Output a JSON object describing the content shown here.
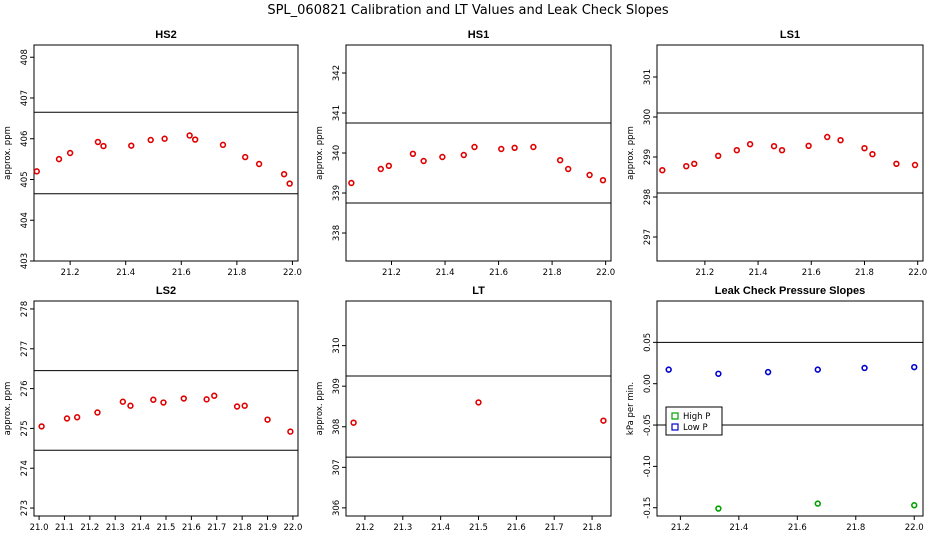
{
  "title": "SPL_060821  Calibration and LT Values and Leak Check Slopes",
  "colors": {
    "red": "#e00000",
    "green": "#00a000",
    "blue": "#0000d0",
    "line": "#000000"
  },
  "chart_data": [
    {
      "type": "scatter",
      "title": "HS2",
      "ylabel": "approx. ppm",
      "xlim": [
        21.07,
        22.02
      ],
      "ylim": [
        403.0,
        408.3
      ],
      "xticks": [
        "21.2",
        "21.4",
        "21.6",
        "21.8",
        "22.0"
      ],
      "yticks": [
        "403",
        "404",
        "405",
        "406",
        "407",
        "408"
      ],
      "hlines": [
        406.65,
        404.65
      ],
      "series": [
        {
          "color": "red",
          "marker": "circle",
          "x": [
            21.08,
            21.16,
            21.2,
            21.3,
            21.32,
            21.42,
            21.49,
            21.54,
            21.63,
            21.65,
            21.75,
            21.83,
            21.88,
            21.97,
            21.99
          ],
          "y": [
            405.2,
            405.5,
            405.65,
            405.92,
            405.82,
            405.83,
            405.97,
            406.0,
            406.08,
            405.98,
            405.85,
            405.55,
            405.38,
            405.13,
            404.9
          ]
        }
      ]
    },
    {
      "type": "scatter",
      "title": "HS1",
      "ylabel": "approx. ppm",
      "xlim": [
        21.03,
        22.02
      ],
      "ylim": [
        337.3,
        342.7
      ],
      "xticks": [
        "21.2",
        "21.4",
        "21.6",
        "21.8",
        "22.0"
      ],
      "yticks": [
        "338",
        "339",
        "340",
        "341",
        "342"
      ],
      "hlines": [
        340.75,
        338.75
      ],
      "series": [
        {
          "color": "red",
          "marker": "circle",
          "x": [
            21.05,
            21.16,
            21.19,
            21.28,
            21.32,
            21.39,
            21.47,
            21.51,
            21.61,
            21.66,
            21.73,
            21.83,
            21.86,
            21.94,
            21.99
          ],
          "y": [
            339.25,
            339.6,
            339.68,
            339.98,
            339.8,
            339.9,
            339.95,
            340.15,
            340.1,
            340.13,
            340.15,
            339.82,
            339.6,
            339.45,
            339.32
          ]
        }
      ]
    },
    {
      "type": "scatter",
      "title": "LS1",
      "ylabel": "approx. ppm",
      "xlim": [
        21.02,
        22.02
      ],
      "ylim": [
        296.4,
        301.8
      ],
      "xticks": [
        "21.2",
        "21.4",
        "21.6",
        "21.8",
        "22.0"
      ],
      "yticks": [
        "297",
        "298",
        "299",
        "300",
        "301"
      ],
      "hlines": [
        300.1,
        298.1
      ],
      "series": [
        {
          "color": "red",
          "marker": "circle",
          "x": [
            21.04,
            21.13,
            21.16,
            21.25,
            21.32,
            21.37,
            21.46,
            21.49,
            21.59,
            21.66,
            21.71,
            21.8,
            21.83,
            21.92,
            21.99
          ],
          "y": [
            298.67,
            298.77,
            298.83,
            299.03,
            299.17,
            299.32,
            299.27,
            299.17,
            299.28,
            299.5,
            299.42,
            299.22,
            299.07,
            298.83,
            298.8
          ]
        }
      ]
    },
    {
      "type": "scatter",
      "title": "LS2",
      "ylabel": "approx. ppm",
      "xlim": [
        20.98,
        22.02
      ],
      "ylim": [
        272.8,
        278.2
      ],
      "xticks": [
        "21.0",
        "21.1",
        "21.2",
        "21.3",
        "21.4",
        "21.5",
        "21.6",
        "21.7",
        "21.8",
        "21.9",
        "22.0"
      ],
      "yticks": [
        "273",
        "274",
        "275",
        "276",
        "277",
        "278"
      ],
      "hlines": [
        276.45,
        274.45
      ],
      "series": [
        {
          "color": "red",
          "marker": "circle",
          "x": [
            21.01,
            21.11,
            21.15,
            21.23,
            21.33,
            21.36,
            21.45,
            21.49,
            21.57,
            21.66,
            21.69,
            21.78,
            21.81,
            21.9,
            21.99
          ],
          "y": [
            275.05,
            275.25,
            275.28,
            275.4,
            275.67,
            275.57,
            275.72,
            275.65,
            275.75,
            275.73,
            275.82,
            275.55,
            275.57,
            275.22,
            274.92
          ]
        }
      ]
    },
    {
      "type": "scatter",
      "title": "LT",
      "ylabel": "approx. ppm",
      "xlim": [
        21.15,
        21.85
      ],
      "ylim": [
        305.8,
        311.1
      ],
      "xticks": [
        "21.2",
        "21.3",
        "21.4",
        "21.5",
        "21.6",
        "21.7",
        "21.8"
      ],
      "yticks": [
        "306",
        "307",
        "308",
        "309",
        "310"
      ],
      "hlines": [
        309.25,
        307.25
      ],
      "series": [
        {
          "color": "red",
          "marker": "circle",
          "x": [
            21.17,
            21.5,
            21.83
          ],
          "y": [
            308.1,
            308.6,
            308.15
          ]
        }
      ]
    },
    {
      "type": "scatter",
      "title": "Leak Check Pressure Slopes",
      "ylabel": "kPa per min.",
      "xlim": [
        21.12,
        22.03
      ],
      "ylim": [
        -0.16,
        0.1
      ],
      "xticks": [
        "21.2",
        "21.4",
        "21.6",
        "21.8",
        "22.0"
      ],
      "yticks": [
        "-0.15",
        "-0.10",
        "-0.05",
        "0.00",
        "0.05"
      ],
      "hlines": [
        0.05,
        -0.05
      ],
      "legend": {
        "position": "center-left",
        "entries": [
          {
            "label": "High P",
            "color": "green"
          },
          {
            "label": "Low P",
            "color": "blue"
          }
        ]
      },
      "series": [
        {
          "name": "High P",
          "color": "green",
          "marker": "circle",
          "x": [
            21.33,
            21.67,
            22.0
          ],
          "y": [
            -0.151,
            -0.145,
            -0.147
          ]
        },
        {
          "name": "Low P",
          "color": "blue",
          "marker": "circle",
          "x": [
            21.16,
            21.33,
            21.5,
            21.67,
            21.83,
            22.0
          ],
          "y": [
            0.017,
            0.012,
            0.014,
            0.017,
            0.019,
            0.02
          ]
        }
      ]
    }
  ]
}
